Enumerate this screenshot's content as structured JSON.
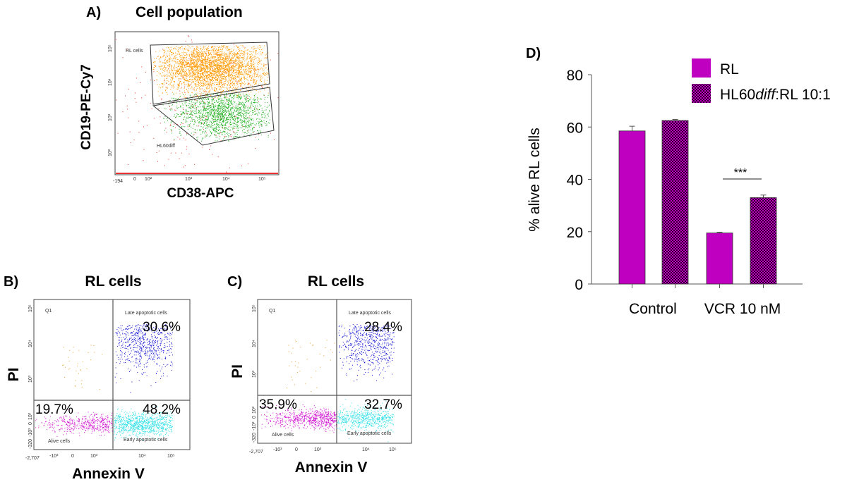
{
  "chart_data": [
    {
      "type": "scatter",
      "panel_label": "A)",
      "title": "Cell population",
      "xlabel": "CD38-APC",
      "ylabel": "CD19-PE-Cy7",
      "x_ticks": [
        "-194",
        "0",
        "10²",
        "10³",
        "10⁴",
        "10⁵"
      ],
      "y_ticks": [
        "10²",
        "10³",
        "10⁴",
        "10⁵"
      ],
      "gates": [
        "RL cells",
        "HL60diff"
      ],
      "colors": {
        "RL cells": "#ff9900",
        "HL60diff": "#22b022",
        "ungated": "#e83030"
      }
    },
    {
      "type": "scatter",
      "panel_label": "B)",
      "title": "RL cells",
      "xlabel": "Annexin V",
      "ylabel": "PI",
      "x_ticks": [
        "-2,707",
        "-10³",
        "0",
        "10³",
        "10⁴",
        "10⁵"
      ],
      "y_ticks": [
        "-320",
        "-10²",
        "0",
        "10²",
        "10³",
        "10⁴",
        "10⁵"
      ],
      "quadrants": {
        "Q1": {
          "label": "Q1"
        },
        "late": {
          "label": "Late apoptotic cells",
          "percent": "30.6%"
        },
        "alive": {
          "label": "Alive cells",
          "percent": "19.7%"
        },
        "early": {
          "label": "Early apoptotic cells",
          "percent": "48.2%"
        }
      },
      "colors": {
        "Q1": "#e8a030",
        "late": "#1010d0",
        "alive": "#d010d0",
        "early": "#30e0e8"
      }
    },
    {
      "type": "scatter",
      "panel_label": "C)",
      "title": "RL cells",
      "xlabel": "Annexin V",
      "ylabel": "PI",
      "x_ticks": [
        "-2,707",
        "-10³",
        "0",
        "10³",
        "10⁴",
        "10⁵"
      ],
      "y_ticks": [
        "-320",
        "-10²",
        "0",
        "10²",
        "10³",
        "10⁴",
        "10⁵"
      ],
      "quadrants": {
        "Q1": {
          "label": "Q1"
        },
        "late": {
          "label": "Late apoptotic cells",
          "percent": "28.4%"
        },
        "alive": {
          "label": "Alive cells",
          "percent": "35.9%"
        },
        "early": {
          "label": "Early apoptotic cells",
          "percent": "32.7%"
        }
      },
      "colors": {
        "Q1": "#e8a030",
        "late": "#1010d0",
        "alive": "#d010d0",
        "early": "#30e0e8"
      }
    },
    {
      "type": "bar",
      "panel_label": "D)",
      "categories": [
        "Control",
        "VCR 10 nM"
      ],
      "ylabel": "% alive RL cells",
      "ylim": [
        0,
        80
      ],
      "y_ticks": [
        "0",
        "20",
        "40",
        "60",
        "80"
      ],
      "series": [
        {
          "name": "RL",
          "values": [
            58.5,
            19.5
          ],
          "errors": [
            1.8,
            0.3
          ],
          "color": "#c000c0",
          "pattern": "solid"
        },
        {
          "name_prefix": "HL60",
          "name_italic": "diff",
          "name_suffix": ":RL 10:1",
          "values": [
            62.5,
            33
          ],
          "errors": [
            0.4,
            1.0
          ],
          "color": "#c000c0",
          "pattern": "checker"
        }
      ],
      "significance": {
        "label": "***",
        "category": "VCR 10 nM"
      }
    }
  ]
}
